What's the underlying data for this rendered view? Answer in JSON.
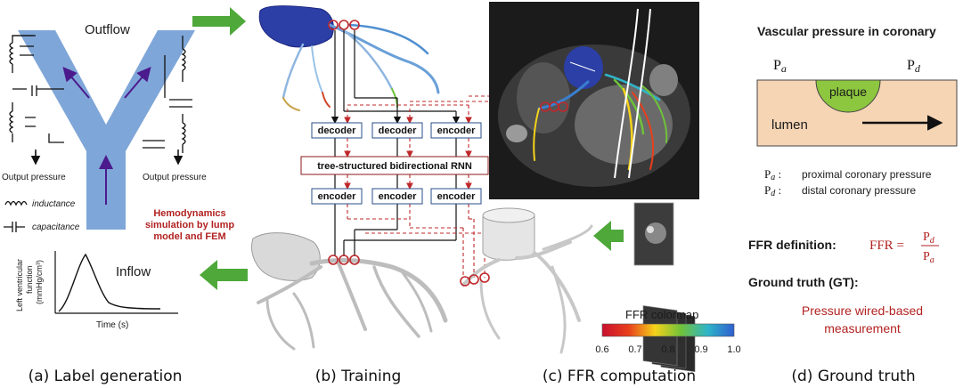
{
  "panel_a": {
    "outflow": "Outflow",
    "output_pressure_left": "Output pressure",
    "output_pressure_right": "Output pressure",
    "inductance": "inductance",
    "capacitance": "capacitance",
    "hemo_line1": "Hemodynamics",
    "hemo_line2": "simulation by lump",
    "hemo_line3": "model and FEM",
    "inflow": "Inflow",
    "ylabel_line1": "Left ventricular",
    "ylabel_line2": "function",
    "ylabel_line3": "(mmHg/cm³)",
    "xlabel": "Time (s)"
  },
  "panel_b": {
    "decoder_1": "decoder",
    "decoder_2": "decoder",
    "encoder_top": "encoder",
    "rnn": "tree-structured bidirectional RNN",
    "encoder_1": "encoder",
    "encoder_2": "encoder",
    "encoder_3": "encoder"
  },
  "panel_c": {
    "colormap_title": "FFR colormap",
    "ticks": [
      "0.6",
      "0.7",
      "0.8",
      "0.9",
      "1.0"
    ]
  },
  "panel_d": {
    "title": "Vascular pressure in coronary",
    "pa_sym": "P",
    "pa_sub": "a",
    "pd_sym": "P",
    "pd_sub": "d",
    "plaque": "plaque",
    "lumen": "lumen",
    "pa_def": "proximal coronary pressure",
    "pd_def": "distal coronary pressure",
    "ffr_def_label": "FFR definition:",
    "ffr_lhs": "FFR =",
    "gt_label": "Ground truth (GT):",
    "gt_line1": "Pressure wired-based",
    "gt_line2": "measurement"
  },
  "captions": {
    "a": "(a) Label generation",
    "b": "(b) Training",
    "c": "(c) FFR computation",
    "d": "(d) Ground truth"
  },
  "colors": {
    "vessel": "#7fa6d8",
    "arrow_green": "#4ea83a",
    "dashed_red": "#c0282b",
    "skin": "#f6d5b5",
    "plaque": "#8dc63f",
    "heart_blue": "#2b3fa6"
  }
}
